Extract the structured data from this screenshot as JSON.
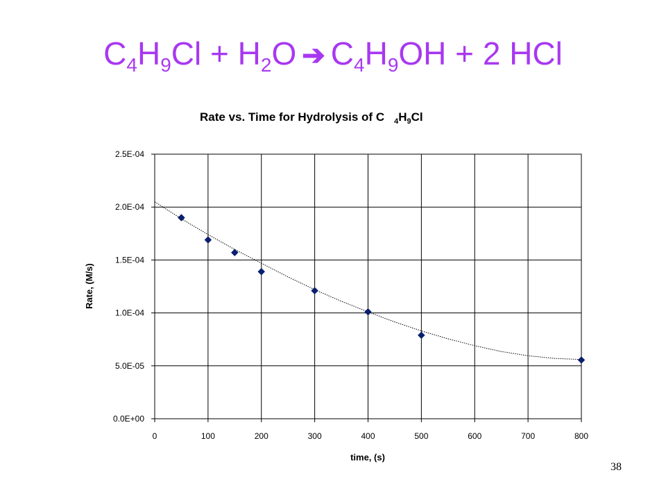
{
  "slide": {
    "title": {
      "lhs1_a": "C",
      "lhs1_a_sub": "4",
      "lhs1_b": "H",
      "lhs1_b_sub": "9",
      "lhs1_c": "Cl",
      "plus1": " + ",
      "lhs2_a": "H",
      "lhs2_a_sub": "2",
      "lhs2_b": "O",
      "arrow": "➔",
      "rhs1_a": "C",
      "rhs1_a_sub": "4",
      "rhs1_b": "H",
      "rhs1_b_sub": "9",
      "rhs1_c": "OH",
      "plus2": " + ",
      "rhs2": "2 HCl"
    },
    "number": "38",
    "title_color": "#a838f0"
  },
  "chart_data": {
    "type": "scatter",
    "title_parts": {
      "main": "Rate vs. Time for Hydrolysis of C",
      "sub1": "4",
      "mid": "H",
      "sub2": "9",
      "end": "Cl"
    },
    "xlabel": "time, (s)",
    "ylabel": "Rate, (M/s)",
    "xlim": [
      0,
      800
    ],
    "ylim": [
      0,
      0.00025
    ],
    "x_ticks": [
      0,
      100,
      200,
      300,
      400,
      500,
      600,
      700,
      800
    ],
    "x_tick_labels": [
      "0",
      "100",
      "200",
      "300",
      "400",
      "500",
      "600",
      "700",
      "800"
    ],
    "y_ticks": [
      0,
      5e-05,
      0.0001,
      0.00015,
      0.0002,
      0.00025
    ],
    "y_tick_labels": [
      "0.0E+00",
      "5.0E-05",
      "1.0E-04",
      "1.5E-04",
      "2.0E-04",
      "2.5E-04"
    ],
    "grid": true,
    "series": [
      {
        "marker": "diamond",
        "color": "#0a1f6e",
        "x": [
          50,
          100,
          150,
          200,
          300,
          400,
          500,
          800
        ],
        "y": [
          0.00019,
          0.000169,
          0.000157,
          0.000139,
          0.000121,
          0.000101,
          7.89e-05,
          5.55e-05
        ]
      }
    ],
    "trendline": {
      "style": "dotted",
      "color": "#000000",
      "x": [
        0,
        50,
        100,
        150,
        200,
        250,
        300,
        350,
        400,
        450,
        500,
        550,
        600,
        650,
        700,
        750,
        800
      ],
      "y": [
        0.000205,
        0.000189,
        0.000174,
        0.00016,
        0.000147,
        0.000134,
        0.000122,
        0.000111,
        0.000101,
        9.15e-05,
        8.3e-05,
        7.55e-05,
        6.9e-05,
        6.35e-05,
        5.95e-05,
        5.7e-05,
        5.6e-05
      ]
    }
  }
}
